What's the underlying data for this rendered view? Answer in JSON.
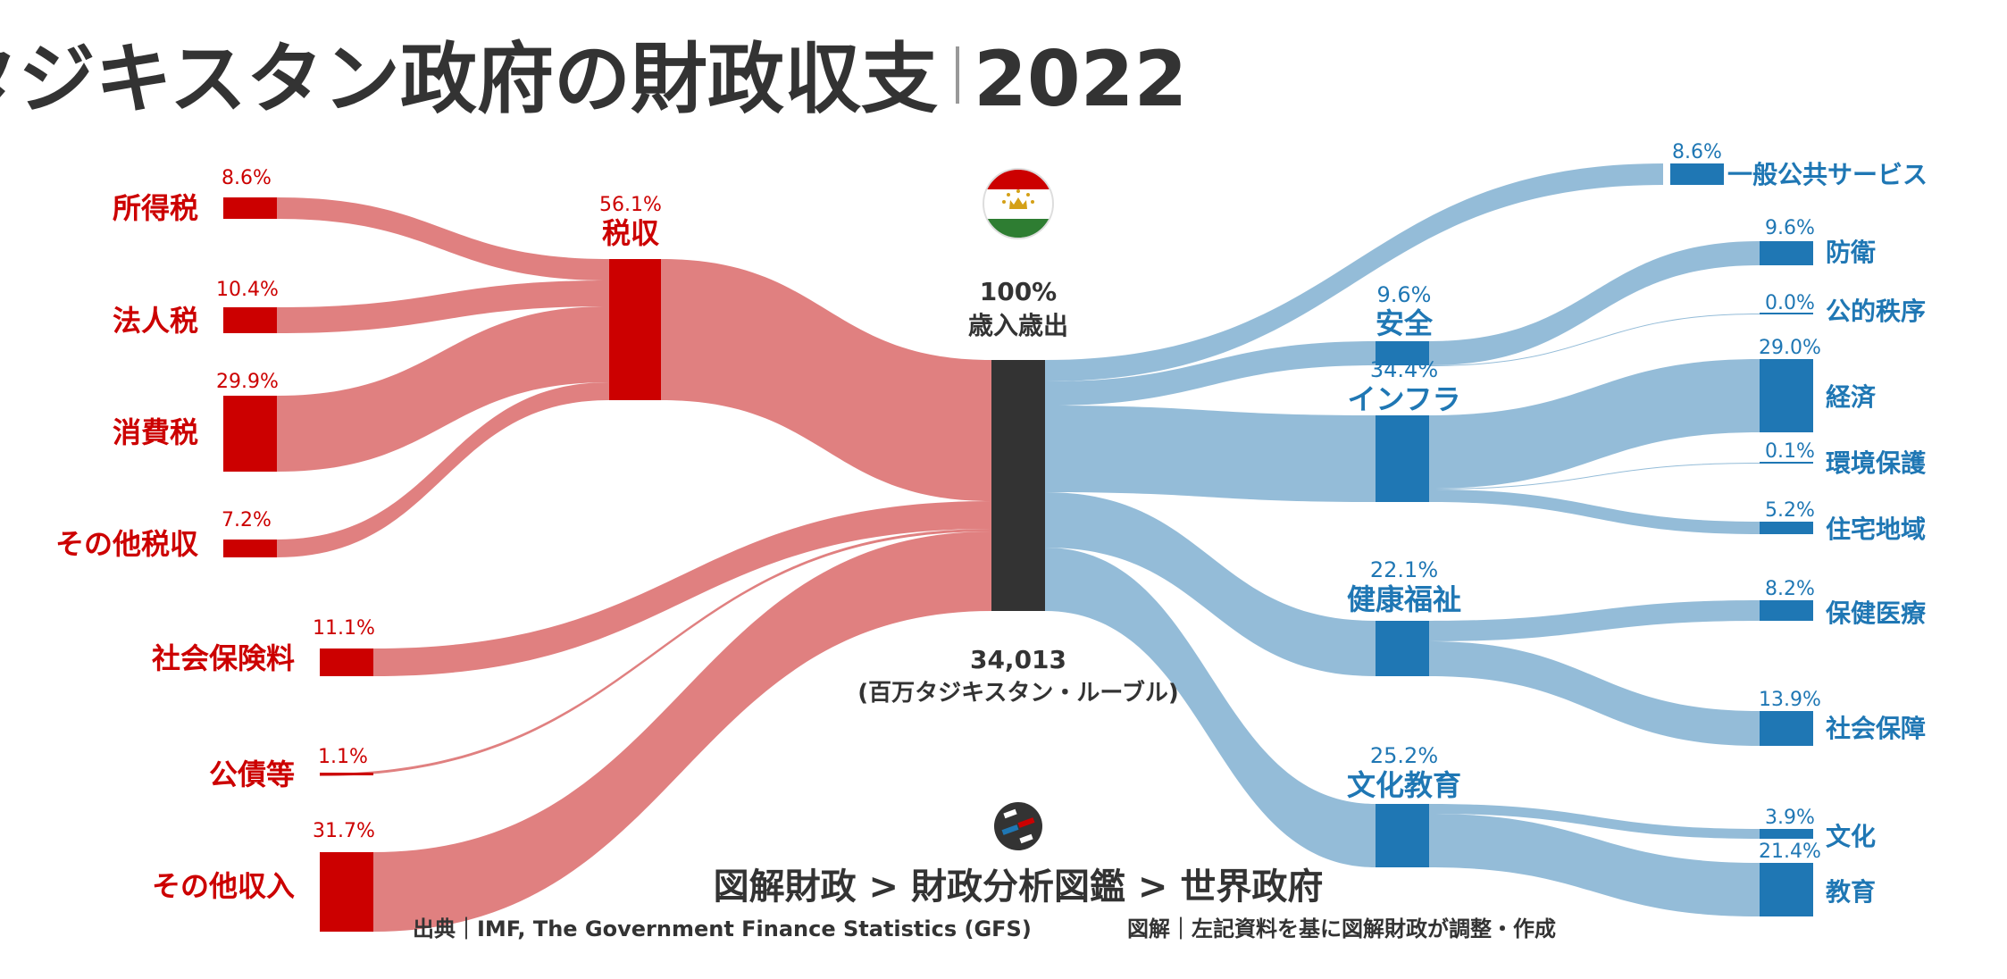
{
  "title": {
    "main": "タジキスタン政府の財政収支",
    "year": "2022"
  },
  "center": {
    "percent": "100%",
    "label": "歳入歳出",
    "amount": "34,013",
    "unit": "(百万タジキスタン・ルーブル)"
  },
  "tax_group": {
    "label": "税収",
    "percent": "56.1%"
  },
  "revenue": [
    {
      "label": "所得税",
      "percent": "8.6%"
    },
    {
      "label": "法人税",
      "percent": "10.4%"
    },
    {
      "label": "消費税",
      "percent": "29.9%"
    },
    {
      "label": "その他税収",
      "percent": "7.2%"
    },
    {
      "label": "社会保険料",
      "percent": "11.1%"
    },
    {
      "label": "公債等",
      "percent": "1.1%"
    },
    {
      "label": "その他収入",
      "percent": "31.7%"
    }
  ],
  "expenditure_groups": [
    {
      "label": "安全",
      "percent": "9.6%"
    },
    {
      "label": "インフラ",
      "percent": "34.4%"
    },
    {
      "label": "健康福祉",
      "percent": "22.1%"
    },
    {
      "label": "文化教育",
      "percent": "25.2%"
    }
  ],
  "expenditure": [
    {
      "label": "一般公共サービス",
      "percent": "8.6%"
    },
    {
      "label": "防衛",
      "percent": "9.6%"
    },
    {
      "label": "公的秩序",
      "percent": "0.0%"
    },
    {
      "label": "経済",
      "percent": "29.0%"
    },
    {
      "label": "環境保護",
      "percent": "0.1%"
    },
    {
      "label": "住宅地域",
      "percent": "5.2%"
    },
    {
      "label": "保健医療",
      "percent": "8.2%"
    },
    {
      "label": "社会保障",
      "percent": "13.9%"
    },
    {
      "label": "文化",
      "percent": "3.9%"
    },
    {
      "label": "教育",
      "percent": "21.4%"
    }
  ],
  "breadcrumb": "図解財政 > 財政分析図鑑 > 世界政府",
  "footer": {
    "source": "出典｜IMF, The Government Finance Statistics (GFS)",
    "note": "図解｜左記資料を基に図解財政が調整・作成"
  },
  "colors": {
    "revenue_node": "#cc0000",
    "revenue_flow": "#e08080",
    "expenditure_node": "#1f77b4",
    "expenditure_flow": "#94bcd8",
    "center_node": "#333333",
    "flag_red": "#cc0000",
    "flag_green": "#2e7d32",
    "flag_gold": "#d4a017"
  }
}
